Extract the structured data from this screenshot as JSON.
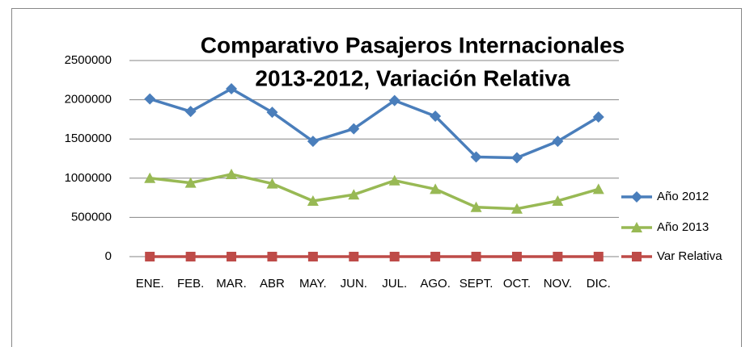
{
  "chart_data": {
    "type": "line",
    "title": [
      "Comparativo Pasajeros Internacionales",
      "2013-2012, Variación Relativa"
    ],
    "categories": [
      "ENE.",
      "FEB.",
      "MAR.",
      "ABR",
      "MAY.",
      "JUN.",
      "JUL.",
      "AGO.",
      "SEPT.",
      "OCT.",
      "NOV.",
      "DIC."
    ],
    "series": [
      {
        "name": "Año 2012",
        "color": "#4a7ebb",
        "marker": "diamond",
        "values": [
          2010000,
          1850000,
          2140000,
          1840000,
          1470000,
          1630000,
          1990000,
          1790000,
          1270000,
          1260000,
          1470000,
          1780000
        ]
      },
      {
        "name": "Año 2013",
        "color": "#98b954",
        "marker": "triangle",
        "values": [
          1000000,
          940000,
          1050000,
          930000,
          710000,
          790000,
          970000,
          860000,
          630000,
          610000,
          710000,
          860000
        ]
      },
      {
        "name": "Var Relativa",
        "color": "#be4b48",
        "marker": "square",
        "values": [
          0,
          0,
          0,
          0,
          0,
          0,
          0,
          0,
          0,
          0,
          0,
          0
        ]
      }
    ],
    "ylim": [
      0,
      2500000
    ],
    "yticks": [
      0,
      500000,
      1000000,
      1500000,
      2000000,
      2500000
    ],
    "grid": true,
    "legend": "right"
  }
}
